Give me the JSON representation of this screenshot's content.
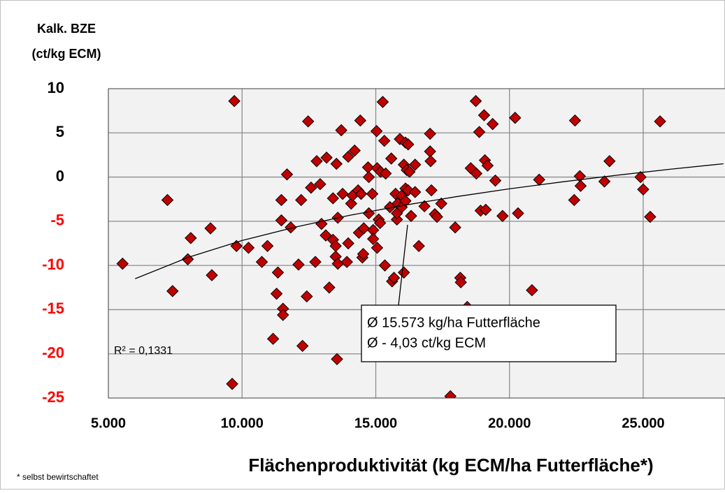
{
  "chart_data": {
    "type": "scatter",
    "y_label": [
      "Kalk. BZE",
      "(ct/kg ECM)"
    ],
    "x_label": "Flächenproduktivität (kg ECM/ha Futterfläche*)",
    "footnote": "* selbst bewirtschaftet",
    "r_squared_label": "R² = 0,1331",
    "callout": [
      "Ø 15.573 kg/ha Futterfläche",
      "Ø  - 4,03 ct/kg ECM"
    ],
    "xlim": [
      5000,
      28200
    ],
    "ylim": [
      -25,
      10
    ],
    "xticks": [
      {
        "value": 5000,
        "label": "5.000"
      },
      {
        "value": 10000,
        "label": "10.000"
      },
      {
        "value": 15000,
        "label": "15.000"
      },
      {
        "value": 20000,
        "label": "20.000"
      },
      {
        "value": 25000,
        "label": "25.000"
      }
    ],
    "yticks": [
      10,
      5,
      0,
      -5,
      -10,
      -15,
      -20,
      -25
    ],
    "grid": true,
    "color": "#c00000",
    "tick_color": "#000000",
    "negative_tick_color": "#ff0000",
    "x": [
      5530,
      7210,
      7400,
      8080,
      7970,
      8820,
      8870,
      9710,
      9790,
      9630,
      10240,
      10740,
      10950,
      11160,
      11290,
      11340,
      11470,
      11470,
      11530,
      11530,
      11680,
      11820,
      12110,
      12210,
      12260,
      12420,
      12470,
      12580,
      12740,
      12790,
      12920,
      12970,
      13130,
      13160,
      13260,
      13400,
      13400,
      13500,
      13500,
      13530,
      13580,
      13580,
      13550,
      13710,
      13760,
      13920,
      13970,
      14080,
      14130,
      13970,
      14210,
      14340,
      14370,
      14420,
      14450,
      14500,
      14550,
      14530,
      14710,
      14740,
      14740,
      14870,
      14900,
      14900,
      15030,
      15050,
      15050,
      15110,
      15160,
      15180,
      15260,
      15320,
      15340,
      15370,
      15530,
      15580,
      15610,
      15680,
      15740,
      15790,
      15790,
      15820,
      15900,
      15970,
      15970,
      16050,
      16050,
      16110,
      16110,
      16110,
      16160,
      16210,
      16210,
      16260,
      16320,
      16470,
      16470,
      16610,
      16820,
      17030,
      17030,
      17050,
      17080,
      17210,
      17290,
      17450,
      17790,
      17970,
      18160,
      18180,
      18420,
      18550,
      18740,
      18760,
      18870,
      18920,
      19050,
      19080,
      19110,
      19180,
      19370,
      19470,
      19740,
      20210,
      20320,
      20840,
      21110,
      22450,
      22420,
      22630,
      22660,
      23550,
      23740,
      24900,
      25000,
      25260,
      25630
    ],
    "values": [
      -9.8,
      -2.6,
      -12.9,
      -6.9,
      -9.3,
      -5.8,
      -11.1,
      8.6,
      -7.8,
      -23.4,
      -8.0,
      -9.6,
      -7.8,
      -18.3,
      -13.2,
      -10.8,
      -2.6,
      -4.9,
      -14.9,
      -15.6,
      0.3,
      -5.7,
      -9.9,
      -2.6,
      -19.1,
      -13.5,
      6.3,
      -1.2,
      -9.6,
      1.8,
      -0.8,
      -5.3,
      -6.6,
      2.2,
      -12.5,
      -2.4,
      -7.1,
      -9.0,
      -7.8,
      1.5,
      -4.6,
      -9.8,
      -20.6,
      5.3,
      -1.9,
      -9.6,
      2.3,
      -3.0,
      -2.1,
      -7.5,
      3.0,
      -1.5,
      -6.3,
      6.4,
      -1.9,
      -9.1,
      -5.8,
      -8.7,
      1.1,
      -4.1,
      0.0,
      -1.9,
      -6.0,
      -7.0,
      5.2,
      1.0,
      -8.0,
      -4.8,
      -5.2,
      0.6,
      8.5,
      4.1,
      -10.0,
      0.4,
      -3.4,
      2.1,
      -11.8,
      -11.4,
      -1.9,
      -4.8,
      -4.1,
      -3.0,
      4.3,
      -2.1,
      -3.4,
      -10.8,
      1.4,
      3.9,
      -2.7,
      -1.3,
      0.8,
      3.7,
      -1.5,
      0.6,
      -4.4,
      1.4,
      -1.7,
      -7.8,
      -3.3,
      4.9,
      2.9,
      1.8,
      -1.5,
      -4.2,
      -4.5,
      -3.0,
      -24.8,
      -5.7,
      -11.4,
      -11.9,
      -14.7,
      1.0,
      8.6,
      0.4,
      5.1,
      -3.8,
      7.0,
      1.9,
      -3.7,
      1.3,
      6.0,
      -0.4,
      -4.4,
      6.7,
      -4.1,
      -12.8,
      -0.3,
      6.4,
      -2.6,
      0.1,
      -1.0,
      -0.5,
      1.8,
      0.0,
      -1.4,
      -4.5,
      6.3
    ],
    "trendline": {
      "x": [
        6000,
        8000,
        10000,
        12000,
        14000,
        16000,
        18000,
        20000,
        22000,
        24000,
        26000,
        28000
      ],
      "values": [
        -11.5,
        -9.07,
        -7.18,
        -5.65,
        -4.34,
        -3.22,
        -2.22,
        -1.33,
        -0.53,
        0.2,
        0.88,
        1.51
      ]
    }
  }
}
